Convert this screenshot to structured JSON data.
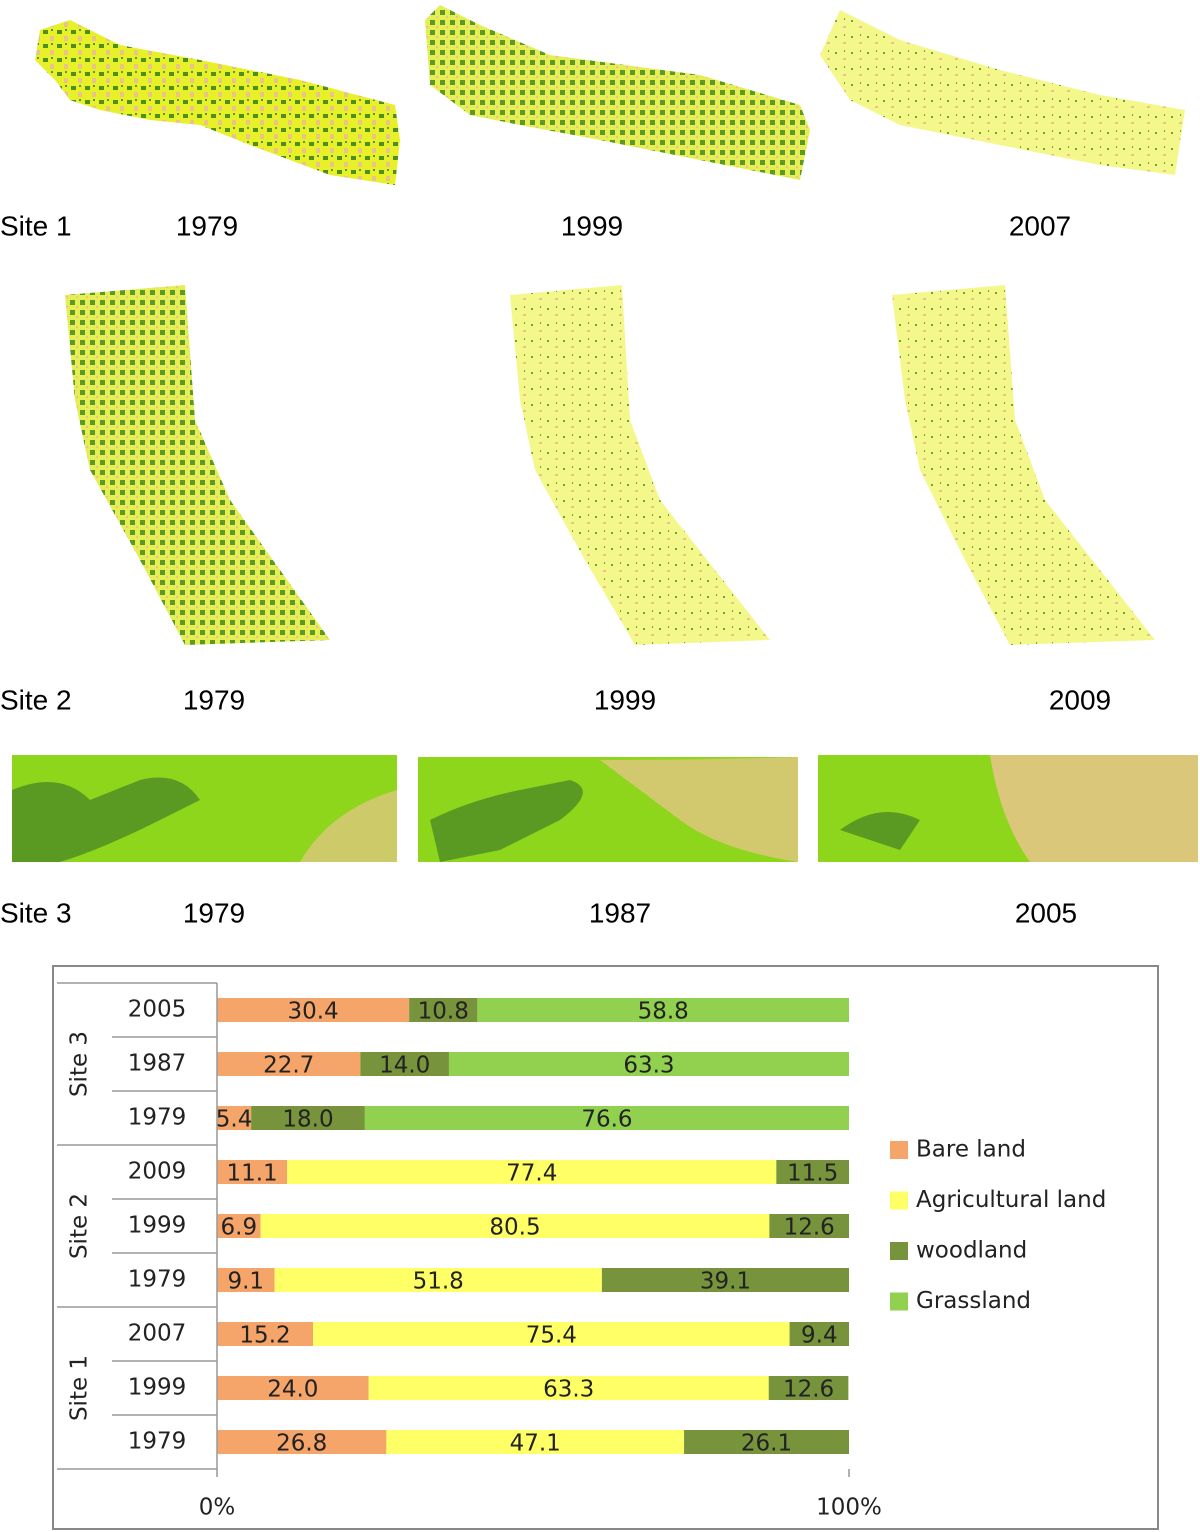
{
  "maps": {
    "rows": [
      {
        "site": "Site 1",
        "years": [
          "1979",
          "1999",
          "2007"
        ]
      },
      {
        "site": "Site 2",
        "years": [
          "1979",
          "1999",
          "2009"
        ]
      },
      {
        "site": "Site 3",
        "years": [
          "1979",
          "1987",
          "2005"
        ]
      }
    ]
  },
  "chart_data": {
    "type": "stacked-bar-horizontal",
    "groups": [
      {
        "name": "Site 3",
        "categories": [
          "2005",
          "1987",
          "1979"
        ]
      },
      {
        "name": "Site 2",
        "categories": [
          "2009",
          "1999",
          "1979"
        ]
      },
      {
        "name": "Site 1",
        "categories": [
          "2007",
          "1999",
          "1979"
        ]
      }
    ],
    "series": [
      {
        "name": "Bare land",
        "color": "#f5a46a",
        "values": [
          30.4,
          22.7,
          5.4,
          11.1,
          6.9,
          9.1,
          15.2,
          24.0,
          26.8
        ],
        "value_labels": [
          "30.4",
          "22.7",
          "5.4",
          "11.1",
          "6.9",
          "9.1",
          "15.2",
          "24.0",
          "26.8"
        ]
      },
      {
        "name": "Agricultural land",
        "color": "#ffff66",
        "values": [
          null,
          null,
          null,
          77.4,
          80.5,
          51.8,
          75.4,
          63.3,
          47.1
        ],
        "value_labels": [
          null,
          null,
          null,
          "77.4",
          "80.5",
          "51.8",
          "75.4",
          "63.3",
          "47.1"
        ]
      },
      {
        "name": "woodland",
        "color": "#77933c",
        "values": [
          10.8,
          14.0,
          18.0,
          11.5,
          12.6,
          39.1,
          9.4,
          12.6,
          26.1
        ],
        "value_labels": [
          "10.8",
          "14.0",
          "18.0",
          "11.5",
          "12.6",
          "39.1",
          "9.4",
          "12.6",
          "26.1"
        ]
      },
      {
        "name": "Grassland",
        "color": "#92d050",
        "values": [
          58.8,
          63.3,
          76.6,
          null,
          null,
          null,
          null,
          null,
          null
        ],
        "value_labels": [
          "58.8",
          "63.3",
          "76.6",
          null,
          null,
          null,
          null,
          null,
          null
        ]
      }
    ],
    "xlim": [
      0,
      100
    ],
    "xticks": [
      {
        "value": 0,
        "label": "0%"
      },
      {
        "value": 100,
        "label": "100%"
      }
    ]
  }
}
